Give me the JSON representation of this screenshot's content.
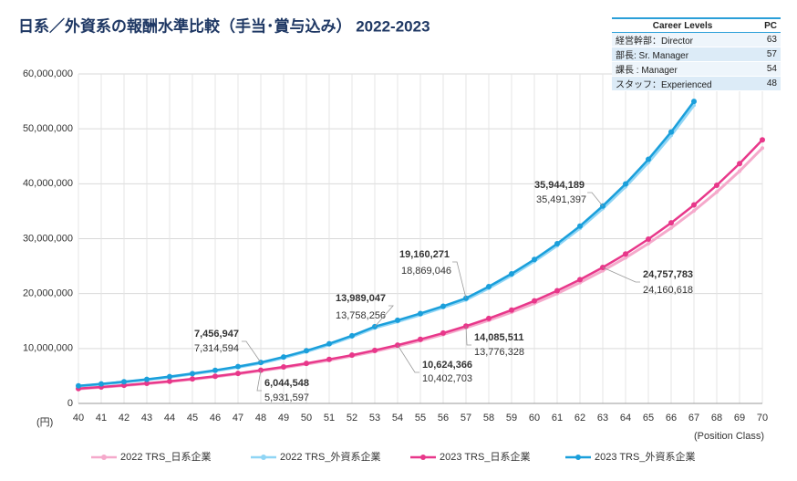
{
  "chart_data": {
    "type": "line",
    "title": "日系／外資系の報酬水準比較（手当･賞与込み） 2022-2023",
    "y_label": "(円)",
    "x_label": "(Position Class)",
    "categories": [
      "40",
      "41",
      "42",
      "43",
      "44",
      "45",
      "46",
      "47",
      "48",
      "49",
      "50",
      "51",
      "52",
      "53",
      "54",
      "55",
      "56",
      "57",
      "58",
      "59",
      "60",
      "61",
      "62",
      "63",
      "64",
      "65",
      "66",
      "67",
      "68",
      "69",
      "70"
    ],
    "ylim": [
      0,
      60000000
    ],
    "yticks": [
      0,
      {
        "value": 10000000,
        "label": "10,000,000"
      },
      {
        "value": 20000000,
        "label": "20,000,000"
      },
      {
        "value": 30000000,
        "label": "30,000,000"
      },
      {
        "value": 40000000,
        "label": "40,000,000"
      },
      {
        "value": 50000000,
        "label": "50,000,000"
      },
      {
        "value": 60000000,
        "label": "60,000,000"
      }
    ],
    "grid": true,
    "legend": "bottom",
    "series": [
      {
        "name": "2022 TRS_日系企業",
        "color": "#f5a9cb",
        "values": [
          2650000,
          2930000,
          3240000,
          3580000,
          3960000,
          4380000,
          4840000,
          5360000,
          5931597,
          6500000,
          7150000,
          7850000,
          8620000,
          9470000,
          10402703,
          11420000,
          12540000,
          13776328,
          15120000,
          16600000,
          18230000,
          20010000,
          22000000,
          24160618,
          26520000,
          29100000,
          31950000,
          35070000,
          38500000,
          42300000,
          46500000
        ],
        "value_labels": [
          null,
          null,
          null,
          null,
          null,
          null,
          null,
          null,
          "5,931,597",
          null,
          null,
          null,
          null,
          null,
          "10,402,703",
          null,
          null,
          "13,776,328",
          null,
          null,
          null,
          null,
          null,
          "24,160,618",
          null,
          null,
          null,
          null,
          null,
          null,
          null
        ]
      },
      {
        "name": "2022 TRS_外資系企業",
        "color": "#8fd5f5",
        "values": [
          3140000,
          3490000,
          3880000,
          4310000,
          4790000,
          5330000,
          5920000,
          6590000,
          7314594,
          8310000,
          9430000,
          10690000,
          12120000,
          13758256,
          14900000,
          16130000,
          17450000,
          18869046,
          20970000,
          23300000,
          25880000,
          28720000,
          31880000,
          35491397,
          39450000,
          43880000,
          48800000,
          54300000,
          null,
          null,
          null
        ],
        "value_labels": [
          null,
          null,
          null,
          null,
          null,
          null,
          null,
          null,
          "7,314,594",
          null,
          null,
          null,
          null,
          "13,758,256",
          null,
          null,
          null,
          "18,869,046",
          null,
          null,
          null,
          null,
          null,
          "35,491,397",
          null,
          null,
          null,
          null,
          null,
          null,
          null
        ]
      },
      {
        "name": "2023 TRS_日系企業",
        "color": "#e8378a",
        "values": [
          2700000,
          2990000,
          3300000,
          3650000,
          4040000,
          4470000,
          4940000,
          5460000,
          6044548,
          6640000,
          7300000,
          8020000,
          8800000,
          9670000,
          10624366,
          11670000,
          12820000,
          14085511,
          15470000,
          17000000,
          18680000,
          20520000,
          22540000,
          24757783,
          27210000,
          29910000,
          32880000,
          36140000,
          39720000,
          43660000,
          48000000
        ],
        "value_labels": [
          null,
          null,
          null,
          null,
          null,
          null,
          null,
          null,
          "6,044,548",
          null,
          null,
          null,
          null,
          null,
          "10,624,366",
          null,
          null,
          "14,085,511",
          null,
          null,
          null,
          null,
          null,
          "24,757,783",
          null,
          null,
          null,
          null,
          null,
          null,
          null
        ]
      },
      {
        "name": "2023 TRS_外資系企業",
        "color": "#1a9fdb",
        "values": [
          3200000,
          3560000,
          3950000,
          4390000,
          4880000,
          5430000,
          6030000,
          6710000,
          7456947,
          8460000,
          9590000,
          10870000,
          12330000,
          13989047,
          15140000,
          16380000,
          17710000,
          19160271,
          21270000,
          23610000,
          26210000,
          29090000,
          32290000,
          35944189,
          39970000,
          44450000,
          49430000,
          55000000,
          null,
          null,
          null
        ],
        "value_labels": [
          null,
          null,
          null,
          null,
          null,
          null,
          null,
          null,
          "7,456,947",
          null,
          null,
          null,
          null,
          "13,989,047",
          null,
          null,
          null,
          "19,160,271",
          null,
          null,
          null,
          null,
          null,
          "35,944,189",
          null,
          null,
          null,
          null,
          null,
          null,
          null
        ]
      }
    ],
    "table": {
      "header": [
        "Career Levels",
        "PC"
      ],
      "rows": [
        [
          "経営幹部：Director",
          "63"
        ],
        [
          "部長: Sr. Manager",
          "57"
        ],
        [
          "課長 : Manager",
          "54"
        ],
        [
          "スタッフ：Experienced",
          "48"
        ]
      ]
    }
  }
}
